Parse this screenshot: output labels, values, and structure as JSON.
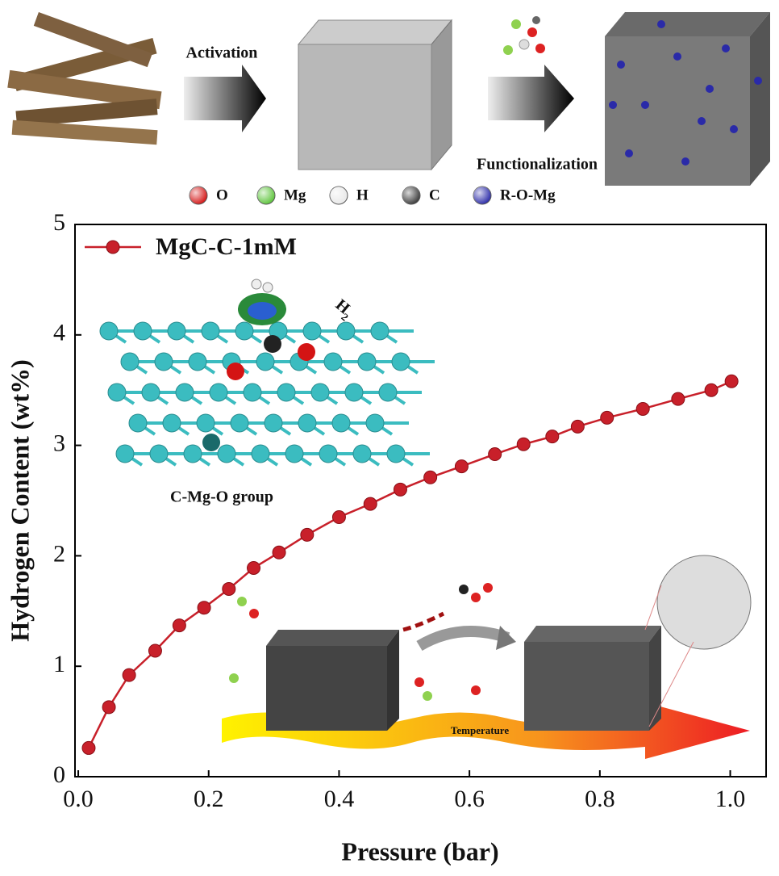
{
  "schematic": {
    "activation": "Activation",
    "functionalization": "Functionalization",
    "legend": [
      "O",
      "Mg",
      "H",
      "C",
      "R-O-Mg"
    ]
  },
  "chart_data": {
    "type": "line",
    "x_label": "Pressure (bar)",
    "y_label": "Hydrogen Content (wt%)",
    "annotations": {
      "group": "C-Mg-O group",
      "h2": "H",
      "h2_sub": "2",
      "temperature": "Temperature"
    },
    "x": [
      0.016,
      0.047,
      0.078,
      0.118,
      0.155,
      0.193,
      0.231,
      0.269,
      0.308,
      0.351,
      0.4,
      0.448,
      0.494,
      0.54,
      0.588,
      0.639,
      0.683,
      0.727,
      0.766,
      0.811,
      0.866,
      0.92,
      0.971,
      1.002
    ],
    "series": [
      {
        "name": "MgC-C-1mM",
        "color": "#c8202a",
        "values": [
          0.26,
          0.63,
          0.92,
          1.14,
          1.37,
          1.53,
          1.7,
          1.89,
          2.03,
          2.19,
          2.35,
          2.47,
          2.6,
          2.71,
          2.81,
          2.92,
          3.01,
          3.08,
          3.17,
          3.25,
          3.33,
          3.42,
          3.5,
          3.58
        ]
      }
    ],
    "xlim": [
      -0.005,
      1.055
    ],
    "ylim": [
      0,
      5
    ],
    "xticks": [
      {
        "value": 0,
        "label": "0.0"
      },
      {
        "value": 0.2,
        "label": "0.2"
      },
      {
        "value": 0.4,
        "label": "0.4"
      },
      {
        "value": 0.6,
        "label": "0.6"
      },
      {
        "value": 0.8,
        "label": "0.8"
      },
      {
        "value": 1,
        "label": "1.0"
      }
    ],
    "yticks": [
      0,
      1,
      2,
      3,
      4,
      5
    ],
    "legend": "upper left"
  }
}
